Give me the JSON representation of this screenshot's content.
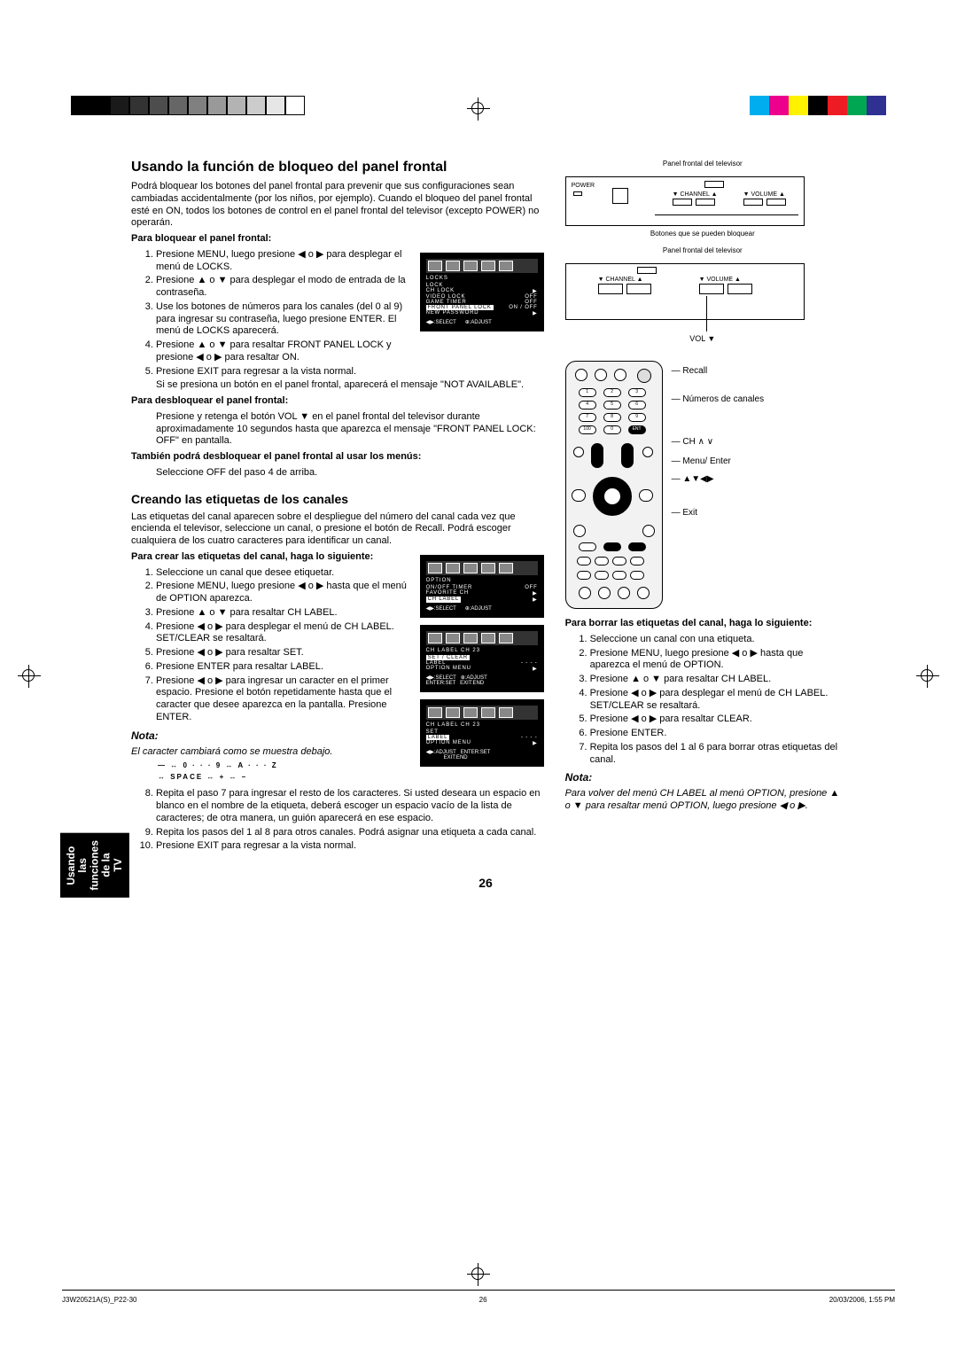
{
  "registration": {
    "gray_swatches": [
      "#000000",
      "#000000",
      "#1a1a1a",
      "#333333",
      "#4d4d4d",
      "#666666",
      "#808080",
      "#999999",
      "#b3b3b3",
      "#cccccc",
      "#e6e6e6",
      "#ffffff"
    ],
    "color_swatches": [
      "#00aeef",
      "#ec008c",
      "#fff200",
      "#000000",
      "#ed1c24",
      "#00a651",
      "#2e3192"
    ]
  },
  "side_tab": "Usando las\nfunciones de la\nTV",
  "h_section1": "Usando la función de bloqueo del panel frontal",
  "intro1": "Podrá bloquear los botones del panel frontal para prevenir que sus configuraciones sean cambiadas accidentalmente (por los niños, por ejemplo). Cuando el bloqueo del panel frontal esté en ON, todos los botones de control en el panel frontal del televisor (excepto POWER) no operarán.",
  "sub1a": "Para bloquear el panel frontal:",
  "list1a": [
    "Presione MENU, luego presione ◀ o ▶ para desplegar el menú de LOCKS.",
    "Presione ▲ o ▼ para desplegar el modo de entrada de la contraseña.",
    "Use los botones de números para los canales (del 0 al 9) para ingresar su contraseña, luego presione ENTER. El menú de LOCKS aparecerá.",
    "Presione ▲ o ▼ para resaltar FRONT PANEL LOCK y presione ◀ o ▶ para resaltar ON.",
    "Presione EXIT para regresar a la vista normal."
  ],
  "after_list1a": "Si se presiona un botón en el panel frontal, aparecerá el mensaje \"NOT AVAILABLE\".",
  "sub1b": "Para desbloquear el panel frontal:",
  "para1b": "Presione y retenga el botón VOL ▼ en el panel frontal del televisor durante aproximadamente 10 segundos hasta que aparezca el mensaje \"FRONT PANEL LOCK: OFF\" en pantalla.",
  "sub1c": "También podrá desbloquear el panel frontal al usar los menús:",
  "para1c": "Seleccione OFF del paso 4 de arriba.",
  "h_section2": "Creando las etiquetas de los canales",
  "intro2": "Las etiquetas del canal aparecen sobre el despliegue del número del canal cada vez que encienda el televisor, seleccione un canal, o presione el botón de Recall. Podrá escoger cualquiera de los cuatro caracteres para identificar un canal.",
  "sub2a": "Para crear las etiquetas del canal, haga lo siguiente:",
  "list2a": [
    "Seleccione un canal que desee etiquetar.",
    "Presione MENU, luego presione ◀ o ▶ hasta que el menú de OPTION aparezca.",
    "Presione ▲ o ▼ para resaltar CH LABEL.",
    "Presione ◀ o ▶ para desplegar el menú de CH LABEL. SET/CLEAR se resaltará.",
    "Presione ◀ o ▶ para resaltar SET.",
    "Presione ENTER para resaltar LABEL.",
    "Presione ◀ o ▶ para ingresar un caracter en el primer espacio. Presione el botón repetidamente hasta que el caracter que desee aparezca en la pantalla. Presione ENTER."
  ],
  "nota1_h": "Nota:",
  "nota1_p": "El caracter cambiará como se muestra debajo.",
  "char_row1": "— ↔ 0 · · · 9 ↔ A · · · Z",
  "char_row2": "↔ SPACE ↔ + ↔ –",
  "list2a_cont": [
    "Repita el paso 7 para ingresar el resto de los caracteres. Si usted deseara un espacio en blanco en el nombre de la etiqueta, deberá escoger un espacio vacío de la lista de caracteres; de otra manera, un guión aparecerá en ese espacio.",
    "Repita los pasos del 1 al 8 para otros canales. Podrá asignar una etiqueta a cada canal.",
    "Presione EXIT para regresar a la vista normal."
  ],
  "panel_caption1": "Panel frontal del televisor",
  "panel_caption2": "Botones que se pueden bloquear",
  "panel_labels": {
    "power": "POWER",
    "channel": "▼ CHANNEL ▲",
    "volume": "▼ VOLUME ▲",
    "vol_arrow": "VOL ▼"
  },
  "remote_labels": {
    "recall": "Recall",
    "numeros": "Números de canales",
    "ch": "CH ∧ ∨",
    "menu": "Menu/ Enter",
    "arrows": "▲▼◀▶",
    "exit": "Exit"
  },
  "sub2b": "Para borrar las etiquetas del canal, haga lo siguiente:",
  "list2b": [
    "Seleccione un canal con una etiqueta.",
    "Presione MENU, luego presione ◀ o ▶ hasta que aparezca el menú de OPTION.",
    "Presione ▲ o ▼ para resaltar CH LABEL.",
    "Presione ◀ o ▶ para desplegar el menú de CH LABEL. SET/CLEAR se resaltará.",
    "Presione ◀ o ▶ para resaltar CLEAR.",
    "Presione ENTER.",
    "Repita los pasos del 1 al 6 para borrar otras etiquetas del canal."
  ],
  "nota2_h": "Nota:",
  "nota2_p": "Para volver del menú CH LABEL al menú OPTION, presione ▲ o ▼ para resaltar menú OPTION, luego presione ◀ o ▶.",
  "menu1": {
    "title": "LOCKS",
    "rows": [
      [
        "LOCK",
        ""
      ],
      [
        "CH LOCK",
        "▶"
      ],
      [
        "VIDEO LOCK",
        "OFF"
      ],
      [
        "GAME TIMER",
        "OFF"
      ],
      [
        "FRONT PANEL LOCK",
        "ON / OFF"
      ],
      [
        "NEW PASSWORD",
        "▶"
      ]
    ],
    "footer": "◀▶:SELECT      ⊕:ADJUST"
  },
  "menu2": {
    "title": "OPTION",
    "rows": [
      [
        "ON/OFF TIMER",
        "OFF"
      ],
      [
        "FAVORITE CH",
        "▶"
      ],
      [
        "CH LABEL",
        "▶"
      ]
    ],
    "footer": "◀▶:SELECT      ⊕:ADJUST"
  },
  "menu3": {
    "title": "CH LABEL    CH  23",
    "rows": [
      [
        "SET / CLEAR",
        ""
      ],
      [
        "LABEL",
        "- - - -"
      ],
      [
        "OPTION MENU",
        "▶"
      ]
    ],
    "footer": "◀▶:SELECT   ⊕:ADJUST\nENTER:SET   EXIT:END"
  },
  "menu4": {
    "title": "CH LABEL    CH  23",
    "rows": [
      [
        "SET",
        ""
      ],
      [
        "LABEL",
        "- - - -"
      ],
      [
        "OPTION MENU",
        "▶"
      ]
    ],
    "footer": "◀▶:ADJUST   ENTER:SET\n            EXIT:END"
  },
  "page_number": "26",
  "footer_left": "J3W20521A(S)_P22-30",
  "footer_mid": "26",
  "footer_right": "20/03/2006, 1:55 PM"
}
